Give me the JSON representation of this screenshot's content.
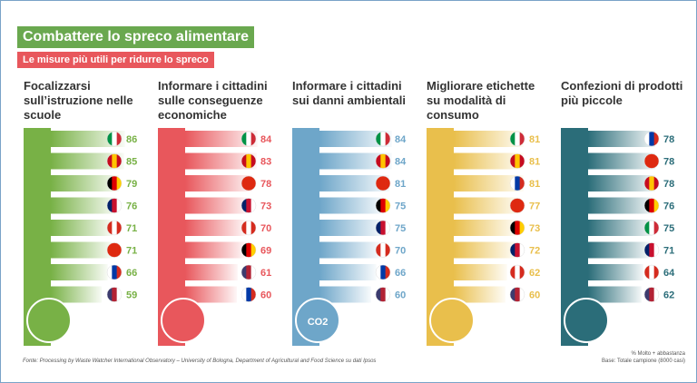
{
  "header": {
    "title": "Combattere lo spreco alimentare",
    "subtitle": "Le misure più utili per ridurre lo spreco"
  },
  "chart_data": [
    {
      "type": "bar",
      "title": "Focalizzarsi sull’istruzione nelle scuole",
      "color": "#78b146",
      "categories": [
        null,
        null,
        null,
        null,
        null,
        null,
        null,
        null
      ],
      "values": [
        86,
        85,
        79,
        76,
        71,
        71,
        66,
        59
      ],
      "flags": [
        [
          "#009246",
          "#ffffff",
          "#ce2b37"
        ],
        [
          "#c60b1e",
          "#ffc400",
          "#c60b1e"
        ],
        [
          "#000000",
          "#dd0000",
          "#ffce00"
        ],
        [
          "#012169",
          "#c8102e",
          "#ffffff"
        ],
        [
          "#d52b1e",
          "#ffffff",
          "#d52b1e"
        ],
        [
          "#de2910",
          "#de2910",
          "#de2910"
        ],
        [
          "#ffffff",
          "#0039a6",
          "#d52b1e"
        ],
        [
          "#3c3b6e",
          "#b22234",
          "#ffffff"
        ]
      ]
    },
    {
      "type": "bar",
      "title": "Informare i cittadini sulle conseguenze economiche",
      "color": "#e8575c",
      "categories": [
        null,
        null,
        null,
        null,
        null,
        null,
        null,
        null
      ],
      "values": [
        84,
        83,
        78,
        73,
        70,
        69,
        61,
        60
      ],
      "flags": [
        [
          "#009246",
          "#ffffff",
          "#ce2b37"
        ],
        [
          "#c60b1e",
          "#ffc400",
          "#c60b1e"
        ],
        [
          "#de2910",
          "#de2910",
          "#de2910"
        ],
        [
          "#012169",
          "#c8102e",
          "#ffffff"
        ],
        [
          "#d52b1e",
          "#ffffff",
          "#d52b1e"
        ],
        [
          "#000000",
          "#dd0000",
          "#ffce00"
        ],
        [
          "#3c3b6e",
          "#b22234",
          "#ffffff"
        ],
        [
          "#ffffff",
          "#0039a6",
          "#d52b1e"
        ]
      ]
    },
    {
      "type": "bar",
      "title": "Informare i cittadini sui danni ambientali",
      "color": "#6ea6c9",
      "icon_label": "CO2",
      "categories": [
        null,
        null,
        null,
        null,
        null,
        null,
        null,
        null
      ],
      "values": [
        84,
        84,
        81,
        75,
        75,
        70,
        66,
        60
      ],
      "flags": [
        [
          "#009246",
          "#ffffff",
          "#ce2b37"
        ],
        [
          "#c60b1e",
          "#ffc400",
          "#c60b1e"
        ],
        [
          "#de2910",
          "#de2910",
          "#de2910"
        ],
        [
          "#000000",
          "#dd0000",
          "#ffce00"
        ],
        [
          "#012169",
          "#c8102e",
          "#ffffff"
        ],
        [
          "#d52b1e",
          "#ffffff",
          "#d52b1e"
        ],
        [
          "#ffffff",
          "#0039a6",
          "#d52b1e"
        ],
        [
          "#3c3b6e",
          "#b22234",
          "#ffffff"
        ]
      ]
    },
    {
      "type": "bar",
      "title": "Migliorare etichette su modalità di consumo",
      "color": "#e9bf4c",
      "categories": [
        null,
        null,
        null,
        null,
        null,
        null,
        null,
        null
      ],
      "values": [
        81,
        81,
        81,
        77,
        73,
        72,
        62,
        60
      ],
      "flags": [
        [
          "#009246",
          "#ffffff",
          "#ce2b37"
        ],
        [
          "#c60b1e",
          "#ffc400",
          "#c60b1e"
        ],
        [
          "#ffffff",
          "#0039a6",
          "#d52b1e"
        ],
        [
          "#de2910",
          "#de2910",
          "#de2910"
        ],
        [
          "#000000",
          "#dd0000",
          "#ffce00"
        ],
        [
          "#012169",
          "#c8102e",
          "#ffffff"
        ],
        [
          "#d52b1e",
          "#ffffff",
          "#d52b1e"
        ],
        [
          "#3c3b6e",
          "#b22234",
          "#ffffff"
        ]
      ]
    },
    {
      "type": "bar",
      "title": "Confezioni di prodotti più piccole",
      "color": "#2b6d79",
      "categories": [
        null,
        null,
        null,
        null,
        null,
        null,
        null,
        null
      ],
      "values": [
        78,
        78,
        78,
        76,
        75,
        71,
        64,
        62
      ],
      "flags": [
        [
          "#ffffff",
          "#0039a6",
          "#d52b1e"
        ],
        [
          "#de2910",
          "#de2910",
          "#de2910"
        ],
        [
          "#c60b1e",
          "#ffc400",
          "#c60b1e"
        ],
        [
          "#000000",
          "#dd0000",
          "#ffce00"
        ],
        [
          "#009246",
          "#ffffff",
          "#ce2b37"
        ],
        [
          "#012169",
          "#c8102e",
          "#ffffff"
        ],
        [
          "#d52b1e",
          "#ffffff",
          "#d52b1e"
        ],
        [
          "#3c3b6e",
          "#b22234",
          "#ffffff"
        ]
      ]
    }
  ],
  "footer": {
    "source": "Fonte: Processing by Waste Watcher International Observatory – University of Bologna, Department of Agricultural and Food Science su dati Ipsos",
    "note": "% Molto + abbastanza",
    "base": "Base: Totale campione (8000 casi)"
  }
}
